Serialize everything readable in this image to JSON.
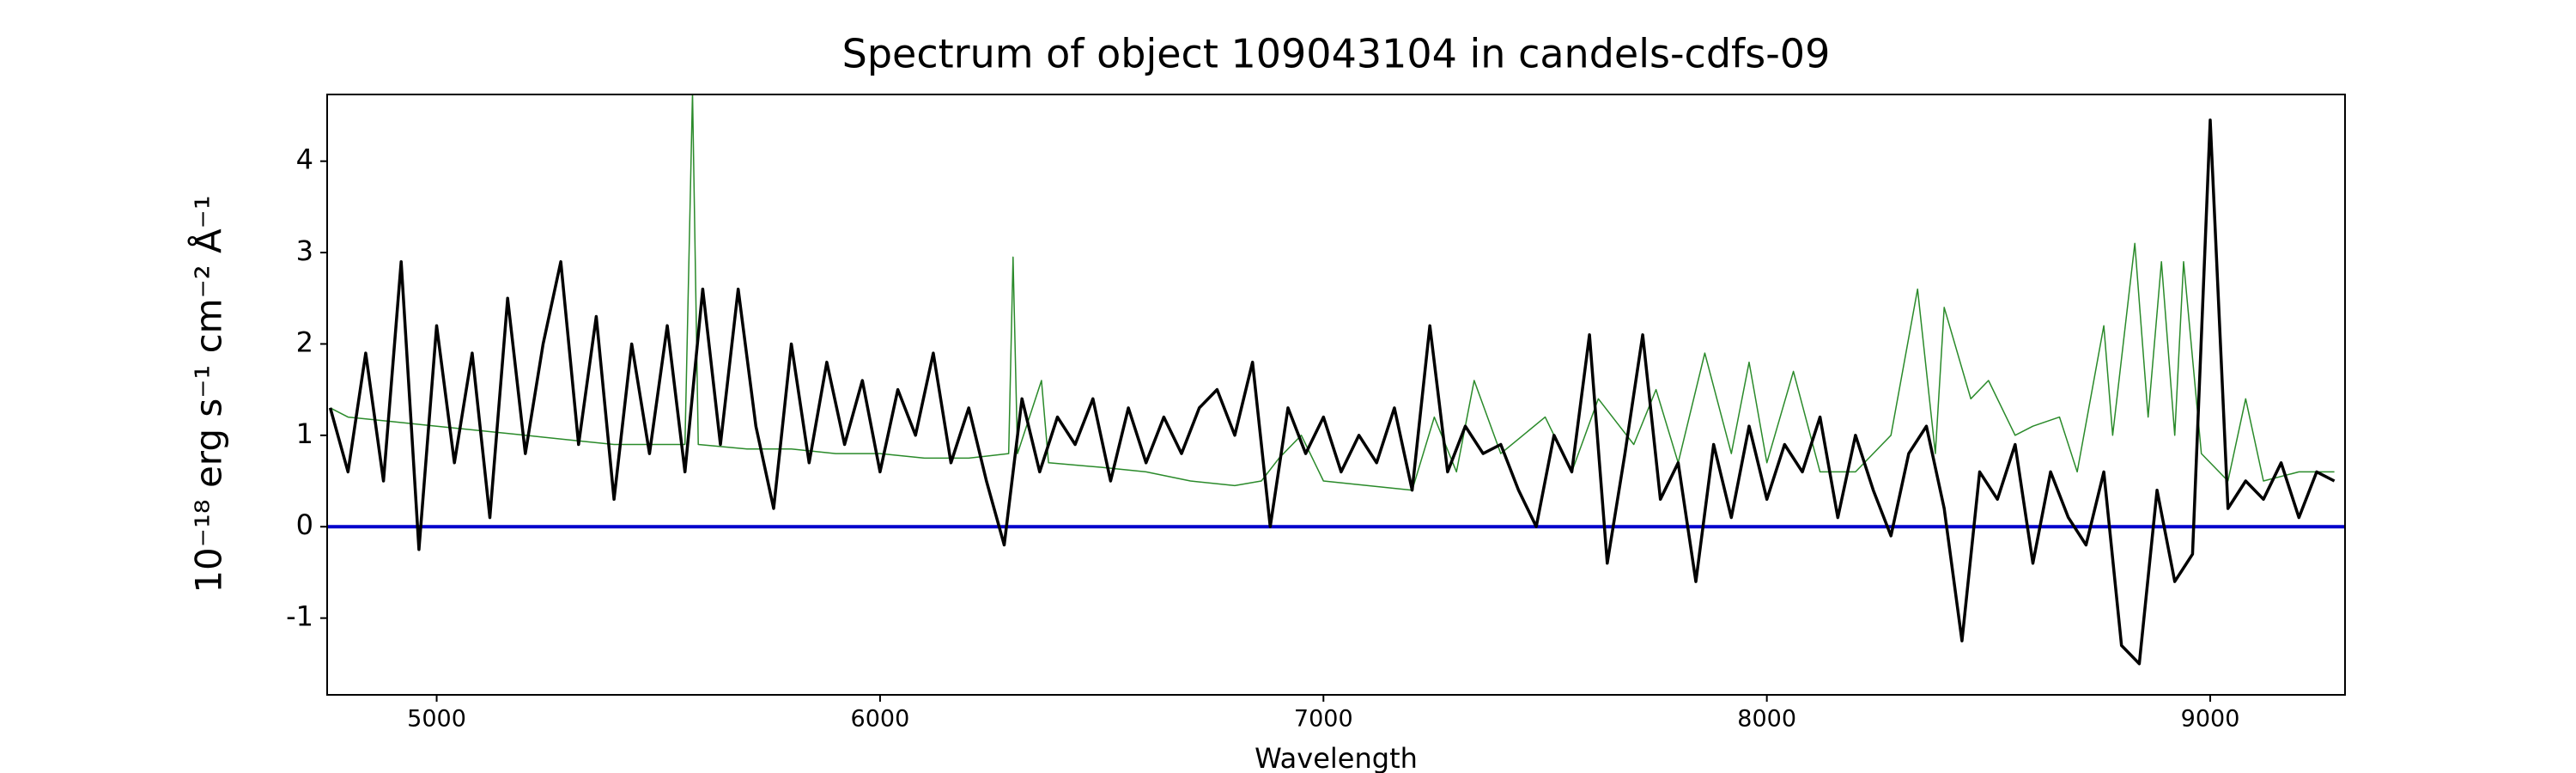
{
  "chart_data": {
    "type": "line",
    "title": "Spectrum of object 109043104 in candels-cdfs-09",
    "xlabel": "Wavelength",
    "ylabel": "10⁻¹⁸ erg s⁻¹ cm⁻² Å⁻¹",
    "xlim": [
      4753,
      9304
    ],
    "ylim": [
      -1.84,
      4.73
    ],
    "xticks": [
      5000,
      6000,
      7000,
      8000,
      9000
    ],
    "yticks": [
      -1,
      0,
      1,
      2,
      3,
      4
    ],
    "zero_line": 0,
    "zero_line_color": "#0000cc",
    "series": [
      {
        "color": "#2a8a2a",
        "width": 1.5,
        "x": [
          4760,
          4800,
          4900,
          5000,
          5100,
          5200,
          5300,
          5400,
          5500,
          5560,
          5577,
          5590,
          5700,
          5800,
          5900,
          6000,
          6100,
          6200,
          6290,
          6300,
          6310,
          6364,
          6380,
          6500,
          6600,
          6700,
          6800,
          6860,
          6900,
          6950,
          7000,
          7100,
          7200,
          7250,
          7300,
          7340,
          7400,
          7500,
          7560,
          7620,
          7700,
          7750,
          7800,
          7860,
          7920,
          7960,
          8000,
          8060,
          8120,
          8200,
          8280,
          8340,
          8380,
          8400,
          8460,
          8500,
          8560,
          8600,
          8660,
          8700,
          8760,
          8780,
          8830,
          8860,
          8890,
          8920,
          8940,
          8980,
          9040,
          9080,
          9120,
          9200,
          9280
        ],
        "values": [
          1.3,
          1.2,
          1.15,
          1.1,
          1.05,
          1.0,
          0.95,
          0.9,
          0.9,
          0.9,
          4.75,
          0.9,
          0.85,
          0.85,
          0.8,
          0.8,
          0.75,
          0.75,
          0.8,
          2.95,
          0.8,
          1.6,
          0.7,
          0.65,
          0.6,
          0.5,
          0.45,
          0.5,
          0.75,
          1.0,
          0.5,
          0.45,
          0.4,
          1.2,
          0.6,
          1.6,
          0.8,
          1.2,
          0.6,
          1.4,
          0.9,
          1.5,
          0.7,
          1.9,
          0.8,
          1.8,
          0.7,
          1.7,
          0.6,
          0.6,
          1.0,
          2.6,
          0.8,
          2.4,
          1.4,
          1.6,
          1.0,
          1.1,
          1.2,
          0.6,
          2.2,
          1.0,
          3.1,
          1.2,
          2.9,
          1.0,
          2.9,
          0.8,
          0.5,
          1.4,
          0.5,
          0.6,
          0.6
        ]
      },
      {
        "color": "#000000",
        "width": 3.5,
        "x": [
          4760,
          4800,
          4840,
          4880,
          4920,
          4960,
          5000,
          5040,
          5080,
          5120,
          5160,
          5200,
          5240,
          5280,
          5320,
          5360,
          5400,
          5440,
          5480,
          5520,
          5560,
          5600,
          5640,
          5680,
          5720,
          5760,
          5800,
          5840,
          5880,
          5920,
          5960,
          6000,
          6040,
          6080,
          6120,
          6160,
          6200,
          6240,
          6280,
          6320,
          6360,
          6400,
          6440,
          6480,
          6520,
          6560,
          6600,
          6640,
          6680,
          6720,
          6760,
          6800,
          6840,
          6880,
          6920,
          6960,
          7000,
          7040,
          7080,
          7120,
          7160,
          7200,
          7240,
          7280,
          7320,
          7360,
          7400,
          7440,
          7480,
          7520,
          7560,
          7600,
          7640,
          7680,
          7720,
          7760,
          7800,
          7840,
          7880,
          7920,
          7960,
          8000,
          8040,
          8080,
          8120,
          8160,
          8200,
          8240,
          8280,
          8320,
          8360,
          8400,
          8440,
          8480,
          8520,
          8560,
          8600,
          8640,
          8680,
          8720,
          8760,
          8800,
          8840,
          8880,
          8920,
          8960,
          9000,
          9040,
          9080,
          9120,
          9160,
          9200,
          9240,
          9280
        ],
        "values": [
          1.3,
          0.6,
          1.9,
          0.5,
          2.9,
          -0.25,
          2.2,
          0.7,
          1.9,
          0.1,
          2.5,
          0.8,
          2.0,
          2.9,
          0.9,
          2.3,
          0.3,
          2.0,
          0.8,
          2.2,
          0.6,
          2.6,
          0.9,
          2.6,
          1.1,
          0.2,
          2.0,
          0.7,
          1.8,
          0.9,
          1.6,
          0.6,
          1.5,
          1.0,
          1.9,
          0.7,
          1.3,
          0.5,
          -0.2,
          1.4,
          0.6,
          1.2,
          0.9,
          1.4,
          0.5,
          1.3,
          0.7,
          1.2,
          0.8,
          1.3,
          1.5,
          1.0,
          1.8,
          0.0,
          1.3,
          0.8,
          1.2,
          0.6,
          1.0,
          0.7,
          1.3,
          0.4,
          2.2,
          0.6,
          1.1,
          0.8,
          0.9,
          0.4,
          0.0,
          1.0,
          0.6,
          2.1,
          -0.4,
          0.8,
          2.1,
          0.3,
          0.7,
          -0.6,
          0.9,
          0.1,
          1.1,
          0.3,
          0.9,
          0.6,
          1.2,
          0.1,
          1.0,
          0.4,
          -0.1,
          0.8,
          1.1,
          0.2,
          -1.25,
          0.6,
          0.3,
          0.9,
          -0.4,
          0.6,
          0.1,
          -0.2,
          0.6,
          -1.3,
          -1.5,
          0.4,
          -0.6,
          -0.3,
          4.45,
          0.2,
          0.5,
          0.3,
          0.7,
          0.1,
          0.6,
          0.5
        ]
      }
    ]
  }
}
